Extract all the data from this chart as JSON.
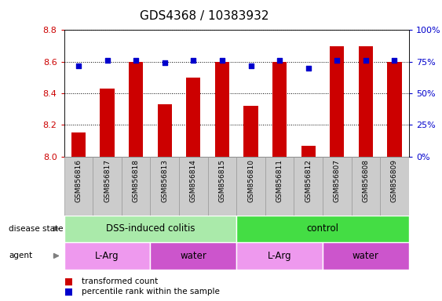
{
  "title": "GDS4368 / 10383932",
  "samples": [
    "GSM856816",
    "GSM856817",
    "GSM856818",
    "GSM856813",
    "GSM856814",
    "GSM856815",
    "GSM856810",
    "GSM856811",
    "GSM856812",
    "GSM856807",
    "GSM856808",
    "GSM856809"
  ],
  "red_values": [
    8.15,
    8.43,
    8.6,
    8.33,
    8.5,
    8.6,
    8.32,
    8.6,
    8.07,
    8.7,
    8.7,
    8.6
  ],
  "blue_values": [
    72,
    76,
    76,
    74,
    76,
    76,
    72,
    76,
    70,
    76,
    76,
    76
  ],
  "ylim_left": [
    8.0,
    8.8
  ],
  "ylim_right": [
    0,
    100
  ],
  "yticks_left": [
    8.0,
    8.2,
    8.4,
    8.6,
    8.8
  ],
  "yticks_right": [
    0,
    25,
    50,
    75,
    100
  ],
  "ytick_labels_right": [
    "0%",
    "25%",
    "50%",
    "75%",
    "100%"
  ],
  "bar_color": "#CC0000",
  "dot_color": "#0000CC",
  "bar_width": 0.5,
  "disease_state_groups": [
    {
      "label": "DSS-induced colitis",
      "start": 0,
      "end": 6,
      "color": "#AAEAAA"
    },
    {
      "label": "control",
      "start": 6,
      "end": 12,
      "color": "#44DD44"
    }
  ],
  "agent_groups": [
    {
      "label": "L-Arg",
      "start": 0,
      "end": 3,
      "color": "#EE99EE"
    },
    {
      "label": "water",
      "start": 3,
      "end": 6,
      "color": "#CC55CC"
    },
    {
      "label": "L-Arg",
      "start": 6,
      "end": 9,
      "color": "#EE99EE"
    },
    {
      "label": "water",
      "start": 9,
      "end": 12,
      "color": "#CC55CC"
    }
  ],
  "legend_items": [
    {
      "label": "transformed count",
      "color": "#CC0000"
    },
    {
      "label": "percentile rank within the sample",
      "color": "#0000CC"
    }
  ],
  "title_fontsize": 11,
  "tick_label_color_left": "#CC0000",
  "tick_label_color_right": "#0000CC",
  "xtick_bg_color": "#CCCCCC",
  "xtick_border_color": "#999999"
}
